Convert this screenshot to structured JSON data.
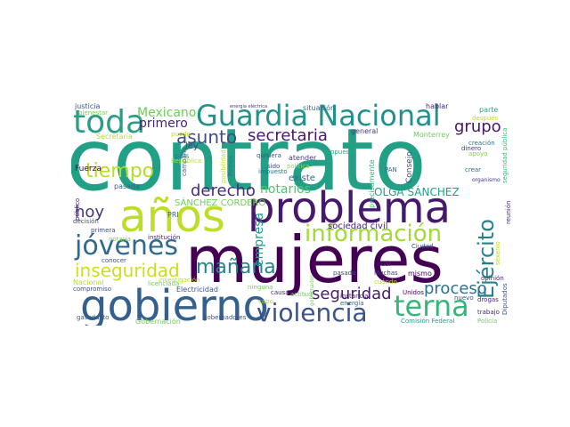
{
  "palette": {
    "dark_purple": "#440154",
    "indigo": "#3b528b",
    "blue": "#31688e",
    "teal": "#21918c",
    "green": "#1fa187",
    "emerald": "#35b779",
    "lime": "#6ece58",
    "yellow_green": "#b5de2b",
    "yellow": "#dde318"
  },
  "words": [
    {
      "text": "contrato",
      "color": "#21a085"
    },
    {
      "text": "mujeres",
      "color": "#440154"
    },
    {
      "text": "problema",
      "color": "#46196a"
    },
    {
      "text": "años",
      "color": "#bdde26"
    },
    {
      "text": "gobierno",
      "color": "#34608d"
    },
    {
      "text": "Guardia Nacional",
      "color": "#21918c"
    },
    {
      "text": "toda",
      "color": "#2a9d86"
    },
    {
      "text": "violencia",
      "color": "#3b528b"
    },
    {
      "text": "información",
      "color": "#a2da37"
    },
    {
      "text": "jóvenes",
      "color": "#31688e"
    },
    {
      "text": "terna",
      "color": "#35b779"
    },
    {
      "text": "Ejército",
      "color": "#26818e"
    },
    {
      "text": "inseguridad",
      "color": "#c8e020"
    },
    {
      "text": "mañana",
      "color": "#25858e"
    },
    {
      "text": "tiempo",
      "color": "#b5de2b"
    },
    {
      "text": "asunto",
      "color": "#3e4a89"
    },
    {
      "text": "secretaria",
      "color": "#48186a"
    },
    {
      "text": "seguridad",
      "color": "#481a6c"
    },
    {
      "text": "proceso",
      "color": "#2c728e"
    },
    {
      "text": "derecho",
      "color": "#472d7b"
    },
    {
      "text": "hoy",
      "color": "#453781"
    },
    {
      "text": "grupo",
      "color": "#481668"
    },
    {
      "text": "Mexicano",
      "color": "#6ece58"
    },
    {
      "text": "primero",
      "color": "#482475"
    },
    {
      "text": "notarios",
      "color": "#52c569"
    },
    {
      "text": "empresa",
      "color": "#1f9e89"
    },
    {
      "text": "OLGA SÁNCHEZ",
      "color": "#1fa187"
    },
    {
      "text": "SÁNCHEZ CORDERO",
      "color": "#6ece58"
    },
    {
      "text": "sociedad civil",
      "color": "#482475"
    },
    {
      "text": "Consejo",
      "color": "#3e4a89"
    },
    {
      "text": "precisamente",
      "color": "#35b779"
    },
    {
      "text": "existe",
      "color": "#31688e"
    },
    {
      "text": "ley",
      "color": "#443a83"
    },
    {
      "text": "Fuerza",
      "color": "#440154"
    },
    {
      "text": "pasada",
      "color": "#355f8d"
    },
    {
      "text": "justicia",
      "color": "#3b528b"
    },
    {
      "text": "bienestar",
      "color": "#7ad151"
    },
    {
      "text": "Secretaría",
      "color": "#b5de2b"
    },
    {
      "text": "puedo",
      "color": "#c2df23"
    },
    {
      "text": "país",
      "color": "#2a768e"
    },
    {
      "text": "República",
      "color": "#b5de2b"
    },
    {
      "text": "campaña",
      "color": "#31688e"
    },
    {
      "text": "posibilidad",
      "color": "#b5de2b"
    },
    {
      "text": "quisiera",
      "color": "#3b528b"
    },
    {
      "text": "atender",
      "color": "#443983"
    },
    {
      "text": "sido",
      "color": "#3e4989"
    },
    {
      "text": "impuesto",
      "color": "#2c728e"
    },
    {
      "text": "política",
      "color": "#90d743"
    },
    {
      "text": "propuesta",
      "color": "#26ad81"
    },
    {
      "text": "Pemex",
      "color": "#2c728e"
    },
    {
      "text": "situación",
      "color": "#31688e"
    },
    {
      "text": "energía eléctrica",
      "color": "#46337e"
    },
    {
      "text": "general",
      "color": "#443983"
    },
    {
      "text": "Monterrey",
      "color": "#6ece58"
    },
    {
      "text": "hablar",
      "color": "#482878"
    },
    {
      "text": "parte",
      "color": "#22a785"
    },
    {
      "text": "después",
      "color": "#bddf26"
    },
    {
      "text": "seguridad pública",
      "color": "#35b779"
    },
    {
      "text": "creación",
      "color": "#2c728e"
    },
    {
      "text": "dinero",
      "color": "#443983"
    },
    {
      "text": "apoyo",
      "color": "#7ad151"
    },
    {
      "text": "crear",
      "color": "#31688e"
    },
    {
      "text": "organismo",
      "color": "#443983"
    },
    {
      "text": "reunión",
      "color": "#482475"
    },
    {
      "text": "Diputados",
      "color": "#3b528b"
    },
    {
      "text": "sexenio",
      "color": "#bddf26"
    },
    {
      "text": "Ciudad",
      "color": "#3b528b"
    },
    {
      "text": "PAN",
      "color": "#31688e"
    },
    {
      "text": "cuál",
      "color": "#482475"
    },
    {
      "text": "Muchas",
      "color": "#443983"
    },
    {
      "text": "mismo",
      "color": "#440154"
    },
    {
      "text": "cuándo",
      "color": "#bddf26"
    },
    {
      "text": "Unidos",
      "color": "#440154"
    },
    {
      "text": "nuevo",
      "color": "#3b528b"
    },
    {
      "text": "drogas",
      "color": "#482475"
    },
    {
      "text": "opinión",
      "color": "#482475"
    },
    {
      "text": "trabajo",
      "color": "#482475"
    },
    {
      "text": "Comisión Federal",
      "color": "#1fa187"
    },
    {
      "text": "Policía",
      "color": "#6ece58"
    },
    {
      "text": "instancia",
      "color": "#482475"
    },
    {
      "text": "pasado",
      "color": "#3e4989"
    },
    {
      "text": "gobernador",
      "color": "#6ece58"
    },
    {
      "text": "energía",
      "color": "#31688e"
    },
    {
      "text": "actitud",
      "color": "#6ece58"
    },
    {
      "text": "causa",
      "color": "#482475"
    },
    {
      "text": "cabo",
      "color": "#b5de2b"
    },
    {
      "text": "ninguna",
      "color": "#6ece58"
    },
    {
      "text": "gobernadores",
      "color": "#3b528b"
    },
    {
      "text": "Gobernación",
      "color": "#6ece58"
    },
    {
      "text": "Electricidad",
      "color": "#3b528b"
    },
    {
      "text": "licenciada",
      "color": "#6ece58"
    },
    {
      "text": "investigación",
      "color": "#b5de2b"
    },
    {
      "text": "institución",
      "color": "#482475"
    },
    {
      "text": "notaría",
      "color": "#6ece58"
    },
    {
      "text": "PRI",
      "color": "#31688e"
    },
    {
      "text": "decisión",
      "color": "#3b528b"
    },
    {
      "text": "público",
      "color": "#482475"
    },
    {
      "text": "primera",
      "color": "#3e4989"
    },
    {
      "text": "conocer",
      "color": "#3b528b"
    },
    {
      "text": "Nacional",
      "color": "#b5de2b"
    },
    {
      "text": "compromiso",
      "color": "#3b528b"
    },
    {
      "text": "gasoducto",
      "color": "#3b528b"
    }
  ]
}
